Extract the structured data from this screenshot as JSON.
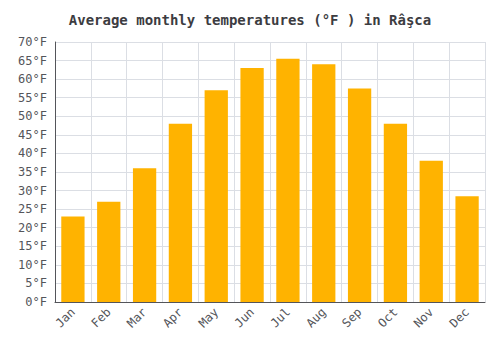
{
  "chart_data": {
    "type": "bar",
    "title": "Average monthly temperatures (°F ) in Râşca",
    "categories": [
      "Jan",
      "Feb",
      "Mar",
      "Apr",
      "May",
      "Jun",
      "Jul",
      "Aug",
      "Sep",
      "Oct",
      "Nov",
      "Dec"
    ],
    "values": [
      23,
      27,
      36,
      48,
      57,
      63,
      65.5,
      64,
      57.5,
      48,
      38,
      28.5
    ],
    "color": "#FFB300",
    "ylim": [
      0,
      70
    ],
    "yticks": [
      {
        "value": 0,
        "label": "0°F"
      },
      {
        "value": 5,
        "label": "5°F"
      },
      {
        "value": 10,
        "label": "10°F"
      },
      {
        "value": 15,
        "label": "15°F"
      },
      {
        "value": 20,
        "label": "20°F"
      },
      {
        "value": 25,
        "label": "25°F"
      },
      {
        "value": 30,
        "label": "30°F"
      },
      {
        "value": 35,
        "label": "35°F"
      },
      {
        "value": 40,
        "label": "40°F"
      },
      {
        "value": 45,
        "label": "45°F"
      },
      {
        "value": 50,
        "label": "50°F"
      },
      {
        "value": 55,
        "label": "55°F"
      },
      {
        "value": 60,
        "label": "60°F"
      },
      {
        "value": 65,
        "label": "65°F"
      },
      {
        "value": 70,
        "label": "70°F"
      }
    ],
    "grid": true
  }
}
